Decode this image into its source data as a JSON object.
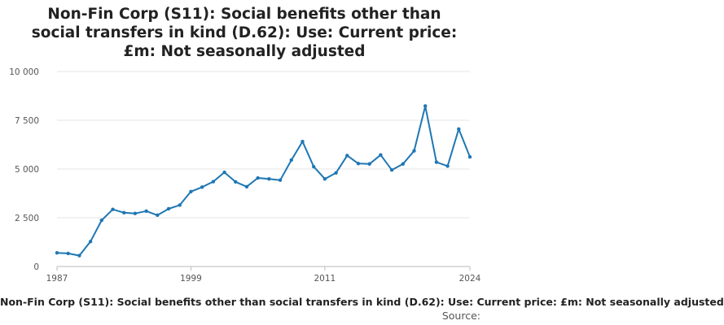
{
  "title": "Non-Fin Corp (S11): Social benefits other than social transfers in kind (D.62): Use: Current price: £m: Not seasonally adjusted",
  "legend_label": "Non-Fin Corp (S11): Social benefits other than social transfers in kind (D.62): Use: Current price: £m: Not seasonally adjusted",
  "source_label": "Source:",
  "colors": {
    "line": "#1f77b4",
    "grid": "#e4e4e4",
    "axis": "#bbbbbb"
  },
  "chart_data": {
    "type": "line",
    "title": "Non-Fin Corp (S11): Social benefits other than social transfers in kind (D.62): Use: Current price: £m: Not seasonally adjusted",
    "xlabel": "",
    "ylabel": "",
    "xlim": [
      1987,
      2024
    ],
    "ylim": [
      0,
      10000
    ],
    "yticks": [
      0,
      2500,
      5000,
      7500,
      10000
    ],
    "ytick_labels": [
      "0",
      "2 500",
      "5 000",
      "7 500",
      "10 000"
    ],
    "xticks": [
      1987,
      1999,
      2011,
      2024
    ],
    "xtick_labels": [
      "1987",
      "1999",
      "2011",
      "2024"
    ],
    "grid": true,
    "legend_position": "bottom",
    "series": [
      {
        "name": "Non-Fin Corp (S11): Social benefits other than social transfers in kind (D.62): Use: Current price: £m: Not seasonally adjusted",
        "x": [
          1987,
          1988,
          1989,
          1990,
          1991,
          1992,
          1993,
          1994,
          1995,
          1996,
          1997,
          1998,
          1999,
          2000,
          2001,
          2002,
          2003,
          2004,
          2005,
          2006,
          2007,
          2008,
          2009,
          2010,
          2011,
          2012,
          2013,
          2014,
          2015,
          2016,
          2017,
          2018,
          2019,
          2020,
          2021,
          2022,
          2023,
          2024
        ],
        "values": [
          700,
          670,
          560,
          1280,
          2370,
          2930,
          2760,
          2720,
          2840,
          2630,
          2960,
          3150,
          3840,
          4070,
          4350,
          4830,
          4340,
          4090,
          4540,
          4490,
          4430,
          5460,
          6410,
          5120,
          4490,
          4800,
          5690,
          5280,
          5260,
          5720,
          4950,
          5260,
          5930,
          8230,
          5350,
          5150,
          7050,
          5620
        ]
      }
    ]
  }
}
